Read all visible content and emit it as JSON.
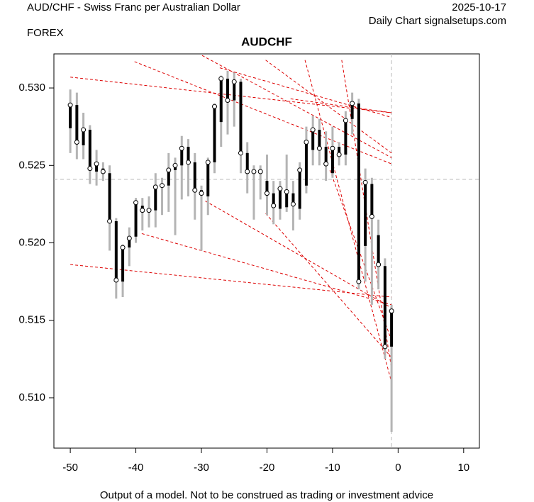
{
  "chart_data": {
    "type": "ohlc",
    "title": "AUDCHF",
    "header_left": "AUD/CHF - Swiss Franc per Australian Dollar",
    "header_left_sub": "FOREX",
    "header_right": "2025-10-17",
    "header_right_sub": "Daily Chart signalsetups.com",
    "footer": "Output of a model. Not to be construed as trading or investment advice",
    "xlim": [
      -52.5,
      12.4
    ],
    "ylim": [
      0.50675,
      0.5322
    ],
    "xticks": [
      -50,
      -40,
      -30,
      -20,
      -10,
      0,
      10
    ],
    "yticks": [
      {
        "value": 0.51,
        "label": "0.510"
      },
      0.515,
      {
        "value": 0.52,
        "label": "0.520"
      },
      0.525,
      {
        "value": 0.53,
        "label": "0.530"
      }
    ],
    "x": [
      -50,
      -49,
      -48,
      -47,
      -46,
      -45,
      -44,
      -43,
      -42,
      -41,
      -40,
      -39,
      -38,
      -37,
      -36,
      -35,
      -34,
      -33,
      -32,
      -31,
      -30,
      -29,
      -28,
      -27,
      -26,
      -25,
      -24,
      -23,
      -22,
      -21,
      -20,
      -19,
      -18,
      -17,
      -16,
      -15,
      -14,
      -13,
      -12,
      -11,
      -10,
      -9,
      -8,
      -7,
      -6,
      -5,
      -4,
      -3,
      -2,
      -1
    ],
    "open": [
      0.5274,
      0.5289,
      0.5263,
      0.5273,
      0.5246,
      0.5248,
      0.5245,
      0.5214,
      0.5175,
      0.5197,
      0.5204,
      0.5224,
      0.5221,
      0.5221,
      0.5236,
      0.5237,
      0.5247,
      0.525,
      0.5262,
      0.5252,
      0.5234,
      0.523,
      0.5252,
      0.5278,
      0.5306,
      0.5292,
      0.5304,
      0.5258,
      0.5246,
      0.5245,
      0.524,
      0.5232,
      0.5222,
      0.5223,
      0.5232,
      0.5222,
      0.5237,
      0.526,
      0.5273,
      0.5262,
      0.5245,
      0.5262,
      0.5257,
      0.528,
      0.529,
      0.5198,
      0.5238,
      0.5205,
      0.5185,
      0.5133
    ],
    "high": [
      0.5299,
      0.5297,
      0.5284,
      0.5276,
      0.526,
      0.5252,
      0.525,
      0.5216,
      0.5199,
      0.521,
      0.5229,
      0.5229,
      0.523,
      0.5245,
      0.5242,
      0.5258,
      0.5255,
      0.5269,
      0.5267,
      0.5258,
      0.5237,
      0.5255,
      0.529,
      0.5308,
      0.5311,
      0.531,
      0.5306,
      0.5265,
      0.525,
      0.525,
      0.5257,
      0.524,
      0.524,
      0.5257,
      0.524,
      0.5252,
      0.5275,
      0.5282,
      0.528,
      0.5272,
      0.5275,
      0.5265,
      0.5285,
      0.5297,
      0.5293,
      0.5248,
      0.5242,
      0.5215,
      0.519,
      0.516
    ],
    "low": [
      0.5258,
      0.5254,
      0.5254,
      0.5238,
      0.5237,
      0.524,
      0.5195,
      0.5164,
      0.5165,
      0.5185,
      0.52,
      0.5208,
      0.521,
      0.521,
      0.5218,
      0.522,
      0.5205,
      0.5228,
      0.523,
      0.5215,
      0.5195,
      0.5218,
      0.5245,
      0.5262,
      0.527,
      0.5275,
      0.5245,
      0.5232,
      0.5215,
      0.5228,
      0.5218,
      0.5212,
      0.5215,
      0.522,
      0.5208,
      0.5215,
      0.5232,
      0.525,
      0.525,
      0.524,
      0.5242,
      0.525,
      0.525,
      0.527,
      0.517,
      0.5175,
      0.516,
      0.517,
      0.5125,
      0.5078
    ],
    "close": [
      0.5289,
      0.5265,
      0.5273,
      0.5248,
      0.5251,
      0.5246,
      0.5214,
      0.5176,
      0.5197,
      0.5203,
      0.5226,
      0.5221,
      0.5221,
      0.5236,
      0.5237,
      0.5247,
      0.525,
      0.5261,
      0.5252,
      0.5234,
      0.5232,
      0.5252,
      0.5288,
      0.5306,
      0.5292,
      0.5304,
      0.5258,
      0.5246,
      0.5246,
      0.5246,
      0.5232,
      0.5224,
      0.5235,
      0.5233,
      0.5225,
      0.5247,
      0.5265,
      0.5273,
      0.5261,
      0.5251,
      0.5261,
      0.5257,
      0.5279,
      0.529,
      0.5175,
      0.5239,
      0.5217,
      0.5186,
      0.5133,
      0.5156
    ],
    "hline": 0.5241,
    "vline": -1,
    "trendline_color": "#dd0000",
    "trendlines": [
      {
        "x": [
          -50,
          -1
        ],
        "y": [
          0.5307,
          0.5284
        ]
      },
      {
        "x": [
          -40.2,
          -1
        ],
        "y": [
          0.5317,
          0.5251
        ]
      },
      {
        "x": [
          -29.9,
          -1
        ],
        "y": [
          0.5321,
          0.5255
        ]
      },
      {
        "x": [
          -20.2,
          -1
        ],
        "y": [
          0.5318,
          0.5258
        ]
      },
      {
        "x": [
          -27.2,
          -1
        ],
        "y": [
          0.5313,
          0.5281
        ]
      },
      {
        "x": [
          -14.2,
          -1
        ],
        "y": [
          0.5318,
          0.511
        ]
      },
      {
        "x": [
          -8.6,
          -1
        ],
        "y": [
          0.5318,
          0.5119
        ]
      },
      {
        "x": [
          -39.1,
          -1
        ],
        "y": [
          0.5206,
          0.516
        ]
      },
      {
        "x": [
          -50,
          -1
        ],
        "y": [
          0.5186,
          0.5165
        ]
      },
      {
        "x": [
          -29.4,
          -1
        ],
        "y": [
          0.5227,
          0.5158
        ]
      },
      {
        "x": [
          -20.2,
          -1
        ],
        "y": [
          0.5219,
          0.5126
        ]
      },
      {
        "x": [
          -10.4,
          -1
        ],
        "y": [
          0.5247,
          0.5137
        ]
      },
      {
        "x": [
          -16.4,
          -1
        ],
        "y": [
          0.5293,
          0.5284
        ]
      }
    ]
  }
}
